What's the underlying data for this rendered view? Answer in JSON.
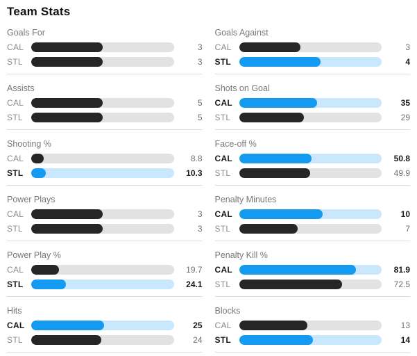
{
  "title": "Team Stats",
  "teams": [
    "CAL",
    "STL"
  ],
  "colors": {
    "highlight": "#149af0",
    "highlight_track": "#c9e7fd",
    "bar_dark": "#262626",
    "bar_track": "#e2e2e2"
  },
  "columns": [
    {
      "sections": [
        {
          "label": "Goals For",
          "rows": [
            {
              "team": "CAL",
              "value": "3",
              "pct": 50,
              "highlight": false
            },
            {
              "team": "STL",
              "value": "3",
              "pct": 50,
              "highlight": false
            }
          ]
        },
        {
          "label": "Assists",
          "rows": [
            {
              "team": "CAL",
              "value": "5",
              "pct": 50,
              "highlight": false
            },
            {
              "team": "STL",
              "value": "5",
              "pct": 50,
              "highlight": false
            }
          ]
        },
        {
          "label": "Shooting %",
          "rows": [
            {
              "team": "CAL",
              "value": "8.8",
              "pct": 8.8,
              "highlight": false
            },
            {
              "team": "STL",
              "value": "10.3",
              "pct": 10.3,
              "highlight": true
            }
          ]
        },
        {
          "label": "Power Plays",
          "rows": [
            {
              "team": "CAL",
              "value": "3",
              "pct": 50,
              "highlight": false
            },
            {
              "team": "STL",
              "value": "3",
              "pct": 50,
              "highlight": false
            }
          ]
        },
        {
          "label": "Power Play %",
          "rows": [
            {
              "team": "CAL",
              "value": "19.7",
              "pct": 19.7,
              "highlight": false
            },
            {
              "team": "STL",
              "value": "24.1",
              "pct": 24.1,
              "highlight": true
            }
          ]
        },
        {
          "label": "Hits",
          "rows": [
            {
              "team": "CAL",
              "value": "25",
              "pct": 51.0,
              "highlight": true
            },
            {
              "team": "STL",
              "value": "24",
              "pct": 49.0,
              "highlight": false
            }
          ]
        }
      ]
    },
    {
      "sections": [
        {
          "label": "Goals Against",
          "rows": [
            {
              "team": "CAL",
              "value": "3",
              "pct": 42.9,
              "highlight": false
            },
            {
              "team": "STL",
              "value": "4",
              "pct": 57.1,
              "highlight": true
            }
          ]
        },
        {
          "label": "Shots on Goal",
          "rows": [
            {
              "team": "CAL",
              "value": "35",
              "pct": 54.7,
              "highlight": true
            },
            {
              "team": "STL",
              "value": "29",
              "pct": 45.3,
              "highlight": false
            }
          ]
        },
        {
          "label": "Face-off %",
          "rows": [
            {
              "team": "CAL",
              "value": "50.8",
              "pct": 50.8,
              "highlight": true
            },
            {
              "team": "STL",
              "value": "49.9",
              "pct": 49.9,
              "highlight": false
            }
          ]
        },
        {
          "label": "Penalty Minutes",
          "rows": [
            {
              "team": "CAL",
              "value": "10",
              "pct": 58.8,
              "highlight": true
            },
            {
              "team": "STL",
              "value": "7",
              "pct": 41.2,
              "highlight": false
            }
          ]
        },
        {
          "label": "Penalty Kill %",
          "rows": [
            {
              "team": "CAL",
              "value": "81.9",
              "pct": 81.9,
              "highlight": true
            },
            {
              "team": "STL",
              "value": "72.5",
              "pct": 72.5,
              "highlight": false
            }
          ]
        },
        {
          "label": "Blocks",
          "rows": [
            {
              "team": "CAL",
              "value": "13",
              "pct": 48.1,
              "highlight": false
            },
            {
              "team": "STL",
              "value": "14",
              "pct": 51.9,
              "highlight": true
            }
          ]
        }
      ]
    }
  ],
  "chart_data": {
    "type": "bar",
    "title": "Team Stats",
    "categories": [
      "CAL",
      "STL"
    ],
    "series": [
      {
        "name": "Goals For",
        "values": [
          3,
          3
        ],
        "leader": null
      },
      {
        "name": "Goals Against",
        "values": [
          3,
          4
        ],
        "leader": "STL"
      },
      {
        "name": "Assists",
        "values": [
          5,
          5
        ],
        "leader": null
      },
      {
        "name": "Shots on Goal",
        "values": [
          35,
          29
        ],
        "leader": "CAL"
      },
      {
        "name": "Shooting %",
        "values": [
          8.8,
          10.3
        ],
        "leader": "STL"
      },
      {
        "name": "Face-off %",
        "values": [
          50.8,
          49.9
        ],
        "leader": "CAL"
      },
      {
        "name": "Power Plays",
        "values": [
          3,
          3
        ],
        "leader": null
      },
      {
        "name": "Penalty Minutes",
        "values": [
          10,
          7
        ],
        "leader": "CAL"
      },
      {
        "name": "Power Play %",
        "values": [
          19.7,
          24.1
        ],
        "leader": "STL"
      },
      {
        "name": "Penalty Kill %",
        "values": [
          81.9,
          72.5
        ],
        "leader": "CAL"
      },
      {
        "name": "Hits",
        "values": [
          25,
          24
        ],
        "leader": "CAL"
      },
      {
        "name": "Blocks",
        "values": [
          13,
          14
        ],
        "leader": "STL"
      }
    ],
    "layout": {
      "orientation": "horizontal",
      "grid": false,
      "legend": "none",
      "note": "counting stats drawn as value/(sum of both); percentage stats drawn as value/100"
    }
  }
}
